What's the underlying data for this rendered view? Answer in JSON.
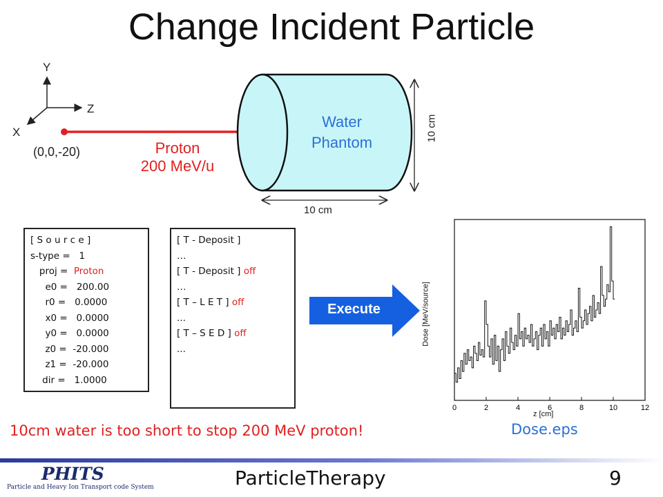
{
  "title": "Change Incident Particle",
  "axes": {
    "y": "Y",
    "z": "Z",
    "x": "X"
  },
  "origin_label": "(0,0,-20)",
  "proton": {
    "name": "Proton",
    "energy": "200 MeV/u"
  },
  "phantom": {
    "line1": "Water",
    "line2": "Phantom"
  },
  "dims": {
    "height": "10 cm",
    "length": "10 cm"
  },
  "source_box": {
    "lines": [
      "[ S o u r c e ]",
      "s-type =   1",
      "   proj =  ",
      "     e0 =   200.00",
      "     r0 =   0.0000",
      "     x0 =   0.0000",
      "     y0 =   0.0000",
      "     z0 =  -20.000",
      "     z1 =  -20.000",
      "    dir =   1.0000"
    ],
    "proj_value": "Proton"
  },
  "tally_box": {
    "deposit1": "[ T - Deposit ]",
    "dots1": "…",
    "deposit2": "[ T - Deposit ]",
    "off1": "off",
    "dots2": "…",
    "let": "[ T – L E T ]",
    "off2": "off",
    "dots3": "...",
    "sed": "[ T – S E D ]",
    "off3": "off",
    "dots4": "..."
  },
  "execute_label": "Execute",
  "warning": "10cm water is too short to stop 200 MeV proton!",
  "dose_caption": "Dose.eps",
  "footer": {
    "center": "ParticleTherapy",
    "page": "9",
    "logo": "PHITS",
    "logo_sub": "Particle and Heavy Ion Transport code System"
  },
  "colors": {
    "accent_blue": "#2a6fd6",
    "proton_red": "#e02020",
    "phantom_fill": "#c8f6f8"
  },
  "chart_data": {
    "type": "line",
    "title": "",
    "xlabel": "z [cm]",
    "ylabel": "Dose [MeV/source]",
    "xlim": [
      0,
      12
    ],
    "x_ticks": [
      "0",
      "2",
      "4",
      "6",
      "8",
      "10",
      "12"
    ],
    "series": [
      {
        "x": [
          0.0,
          0.1,
          0.2,
          0.3,
          0.4,
          0.5,
          0.6,
          0.7,
          0.8,
          0.9,
          1.0,
          1.1,
          1.2,
          1.3,
          1.4,
          1.5,
          1.6,
          1.7,
          1.8,
          1.9,
          2.0,
          2.1,
          2.2,
          2.3,
          2.4,
          2.5,
          2.6,
          2.7,
          2.8,
          2.9,
          3.0,
          3.1,
          3.2,
          3.3,
          3.4,
          3.5,
          3.6,
          3.7,
          3.8,
          3.9,
          4.0,
          4.1,
          4.2,
          4.3,
          4.4,
          4.5,
          4.6,
          4.7,
          4.8,
          4.9,
          5.0,
          5.1,
          5.2,
          5.3,
          5.4,
          5.5,
          5.6,
          5.7,
          5.8,
          5.9,
          6.0,
          6.1,
          6.2,
          6.3,
          6.4,
          6.5,
          6.6,
          6.7,
          6.8,
          6.9,
          7.0,
          7.1,
          7.2,
          7.3,
          7.4,
          7.5,
          7.6,
          7.7,
          7.8,
          7.9,
          8.0,
          8.1,
          8.2,
          8.3,
          8.4,
          8.5,
          8.6,
          8.7,
          8.8,
          8.9,
          9.0,
          9.1,
          9.2,
          9.3,
          9.4,
          9.5,
          9.6,
          9.7,
          9.8,
          9.9,
          10.0
        ],
        "y": [
          0.15,
          0.1,
          0.18,
          0.12,
          0.22,
          0.16,
          0.26,
          0.2,
          0.28,
          0.22,
          0.24,
          0.18,
          0.3,
          0.26,
          0.22,
          0.32,
          0.25,
          0.28,
          0.24,
          0.55,
          0.42,
          0.3,
          0.24,
          0.34,
          0.2,
          0.36,
          0.22,
          0.3,
          0.16,
          0.28,
          0.34,
          0.22,
          0.38,
          0.3,
          0.26,
          0.4,
          0.32,
          0.28,
          0.36,
          0.3,
          0.48,
          0.34,
          0.38,
          0.3,
          0.4,
          0.34,
          0.36,
          0.32,
          0.42,
          0.3,
          0.34,
          0.38,
          0.28,
          0.36,
          0.4,
          0.3,
          0.42,
          0.34,
          0.38,
          0.3,
          0.44,
          0.36,
          0.4,
          0.34,
          0.42,
          0.38,
          0.46,
          0.34,
          0.4,
          0.36,
          0.44,
          0.38,
          0.42,
          0.5,
          0.36,
          0.4,
          0.44,
          0.38,
          0.62,
          0.46,
          0.4,
          0.44,
          0.5,
          0.42,
          0.48,
          0.52,
          0.44,
          0.58,
          0.46,
          0.5,
          0.54,
          0.48,
          0.74,
          0.58,
          0.52,
          0.56,
          0.64,
          0.6,
          0.96,
          0.66,
          0.56
        ]
      }
    ]
  }
}
